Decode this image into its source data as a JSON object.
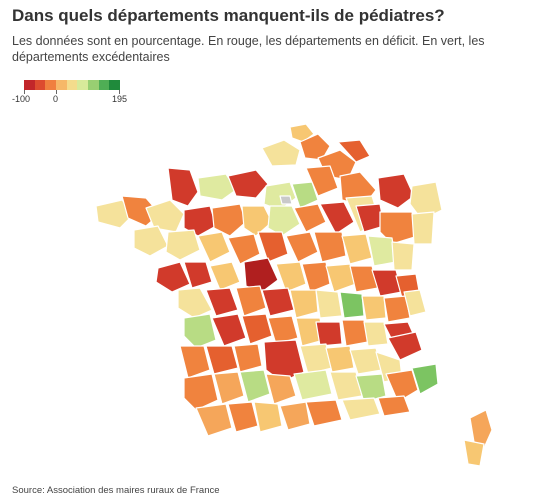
{
  "header": {
    "title": "Dans quels départements manquent-ils de pédiatres?",
    "subtitle": "Les données sont en pourcentage. En rouge, les départements en déficit. En vert, les départements excédentaires"
  },
  "legend": {
    "min_label": "-100",
    "mid_label": "0",
    "max_label": "195",
    "colors": [
      "#c2262a",
      "#dd4b2f",
      "#f0803f",
      "#f6b868",
      "#f4dc8c",
      "#d8ea9a",
      "#98cf72",
      "#4fae55",
      "#1f8a3b"
    ]
  },
  "map": {
    "colors": {
      "deep_red": "#b01f1f",
      "red": "#d13a2b",
      "orange_red": "#e5602f",
      "orange": "#f0833e",
      "light_orange": "#f5a65a",
      "yellow_orange": "#f7c772",
      "pale_yellow": "#f5e29b",
      "pale_green": "#dfeaa0",
      "light_green": "#b8dc84",
      "green": "#7cc462",
      "grey": "#c9c9c9"
    }
  },
  "footer": {
    "source": "Source: Association des maires ruraux de France"
  }
}
